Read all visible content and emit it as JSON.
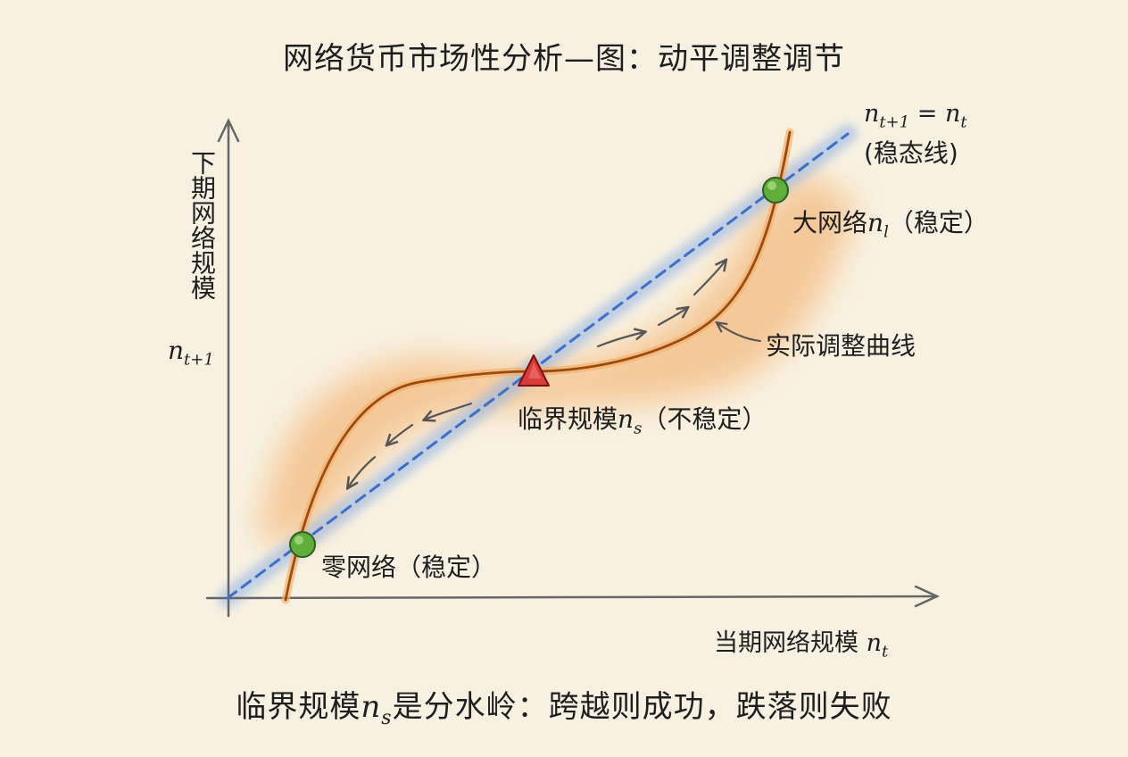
{
  "title": "网络货币市场性分析—图：动平调整调节",
  "axes": {
    "y_label_cn": "下期网络规模",
    "y_label_math": "n",
    "y_label_sub": "t+1",
    "x_label_cn": "当期网络规模",
    "x_label_math": "n",
    "x_label_sub": "t"
  },
  "diagonal": {
    "eq_left": "n",
    "eq_left_sub": "t+1",
    "eq_mid": " = n",
    "eq_right_sub": "t",
    "name": "(稳态线)",
    "color": "#3d6fc4"
  },
  "curve": {
    "label": "实际调整曲线",
    "color": "#9a4a12",
    "glow_color": "#f3b26a"
  },
  "points": {
    "zero": {
      "label": "零网络（稳定）",
      "color": "#5fae3c"
    },
    "large": {
      "label_pre": "大网络",
      "label_math": "n",
      "label_sub": "l",
      "label_post": "（稳定）",
      "color": "#5fae3c"
    },
    "critical": {
      "label_pre": "临界规模",
      "label_math": "n",
      "label_sub": "s",
      "label_post": "（不稳定）",
      "color": "#d93a3a"
    }
  },
  "bottom_pre": "临界规模",
  "bottom_math": "n",
  "bottom_sub": "s",
  "bottom_post": "是分水岭：跨越则成功，跌落则失败"
}
